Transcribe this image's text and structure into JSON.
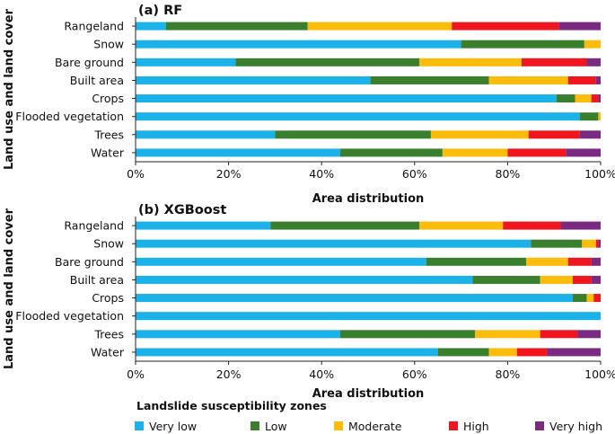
{
  "colors": {
    "very_low": "#1ab2e8",
    "low": "#3a7f2d",
    "moderate": "#fcbc0b",
    "high": "#ef1620",
    "very_high": "#7b2a82"
  },
  "legend": {
    "title": "Landslide susceptibility zones",
    "items": [
      {
        "label": "Very low",
        "color": "#1ab2e8"
      },
      {
        "label": "Low",
        "color": "#3a7f2d"
      },
      {
        "label": "Moderate",
        "color": "#fcbc0b"
      },
      {
        "label": "High",
        "color": "#ef1620"
      },
      {
        "label": "Very high",
        "color": "#7b2a82"
      }
    ]
  },
  "chart_data": [
    {
      "type": "bar",
      "orientation": "horizontal-stacked",
      "title": "(a) RF",
      "xlabel": "Area distribution",
      "ylabel": "Land use and land cover",
      "xlim": [
        0,
        100
      ],
      "xticks": [
        "0%",
        "20%",
        "40%",
        "60%",
        "80%",
        "100%"
      ],
      "grid": false,
      "categories": [
        "Rangeland",
        "Snow",
        "Bare ground",
        "Built area",
        "Crops",
        "Flooded vegetation",
        "Trees",
        "Water"
      ],
      "series": [
        {
          "name": "Very low",
          "values": [
            6.5,
            70,
            21.5,
            50.5,
            90.5,
            95.5,
            30,
            44
          ]
        },
        {
          "name": "Low",
          "values": [
            30.5,
            26.5,
            39.5,
            25.5,
            4,
            4,
            33.5,
            22
          ]
        },
        {
          "name": "Moderate",
          "values": [
            31,
            3.5,
            22,
            17,
            3.5,
            0.5,
            21,
            14
          ]
        },
        {
          "name": "High",
          "values": [
            23,
            0,
            14,
            6,
            1.5,
            0,
            11,
            12.5
          ]
        },
        {
          "name": "Very high",
          "values": [
            9,
            0,
            3,
            1,
            0.5,
            0,
            4.5,
            7.5
          ]
        }
      ]
    },
    {
      "type": "bar",
      "orientation": "horizontal-stacked",
      "title": "(b) XGBoost",
      "xlabel": "Area distribution",
      "ylabel": "Land use and land cover",
      "xlim": [
        0,
        100
      ],
      "xticks": [
        "0%",
        "20%",
        "40%",
        "60%",
        "80%",
        "100%"
      ],
      "grid": false,
      "categories": [
        "Rangeland",
        "Snow",
        "Bare ground",
        "Built area",
        "Crops",
        "Flooded vegetation",
        "Trees",
        "Water"
      ],
      "series": [
        {
          "name": "Very low",
          "values": [
            29,
            85,
            62.5,
            72.5,
            94,
            100,
            44,
            65
          ]
        },
        {
          "name": "Low",
          "values": [
            32,
            11,
            21.5,
            14.5,
            3,
            0,
            29,
            11
          ]
        },
        {
          "name": "Moderate",
          "values": [
            18,
            3,
            9,
            7,
            1.5,
            0,
            14,
            6
          ]
        },
        {
          "name": "High",
          "values": [
            12.5,
            0.5,
            5,
            4,
            1.5,
            0,
            8,
            6.5
          ]
        },
        {
          "name": "Very high",
          "values": [
            8.5,
            0.5,
            2,
            2,
            0,
            0,
            5,
            11.5
          ]
        }
      ]
    }
  ]
}
